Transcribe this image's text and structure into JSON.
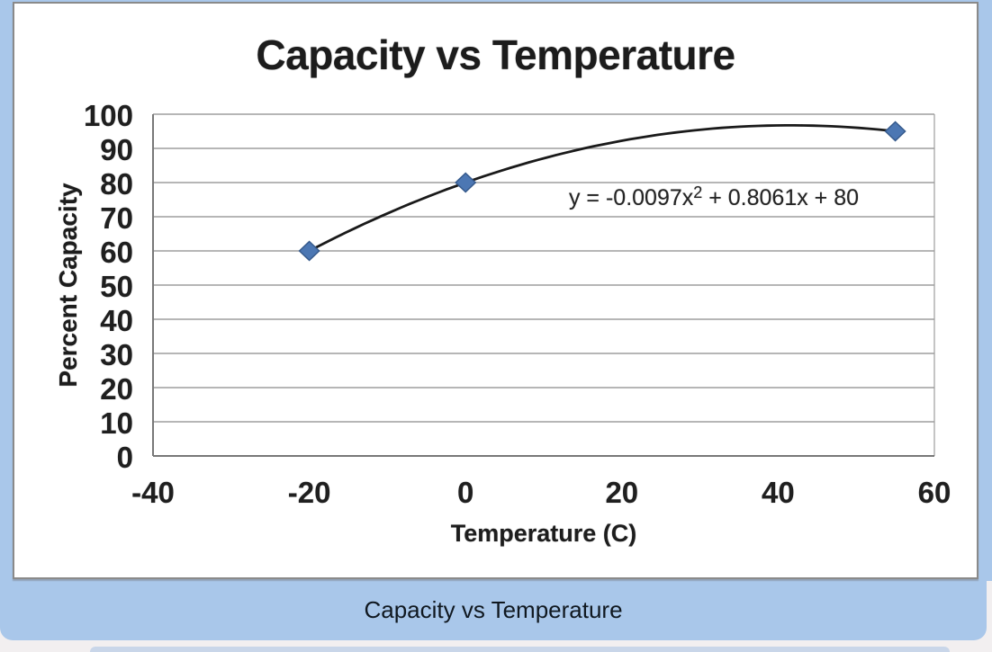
{
  "window": {
    "caption": "Capacity vs Temperature"
  },
  "chart_data": {
    "type": "scatter",
    "title": "Capacity vs Temperature",
    "xlabel": "Temperature (C)",
    "ylabel": "Percent Capacity",
    "x": [
      -20,
      0,
      55
    ],
    "y": [
      60,
      80,
      95
    ],
    "xlim": [
      -40,
      60
    ],
    "ylim": [
      0,
      100
    ],
    "x_ticks": [
      -40,
      -20,
      0,
      20,
      40,
      60
    ],
    "y_ticks": [
      0,
      10,
      20,
      30,
      40,
      50,
      60,
      70,
      80,
      90,
      100
    ],
    "grid": "horizontal-only",
    "legend": "none",
    "marker": {
      "shape": "diamond",
      "fill": "#4c77b3",
      "stroke": "#365a8c"
    },
    "trendline": {
      "kind": "quadratic",
      "a": -0.0097,
      "b": 0.8061,
      "c": 80,
      "x_start": -20,
      "x_end": 55,
      "color": "#1a1a1a",
      "equation": {
        "prefix": "y = -0.0097x",
        "superscript": "2",
        "suffix": " + 0.8061x + 80"
      }
    }
  },
  "colors": {
    "panel": "#a9c7ea",
    "chart_bg": "#ffffff",
    "chart_border": "#8a8a8a",
    "grid": "#9e9e9e",
    "axis": "#787878",
    "text": "#1d1d1d"
  }
}
